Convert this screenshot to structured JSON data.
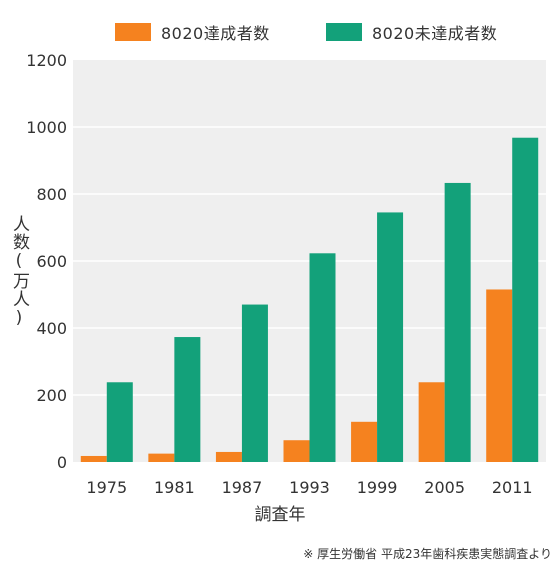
{
  "chart_data": {
    "type": "bar",
    "categories": [
      "1975",
      "1981",
      "1987",
      "1993",
      "1999",
      "2005",
      "2011"
    ],
    "series": [
      {
        "name": "8020達成者数",
        "color": "#f5821f",
        "values": [
          18,
          25,
          30,
          65,
          120,
          238,
          515
        ]
      },
      {
        "name": "8020未達成者数",
        "color": "#13a17a",
        "values": [
          238,
          373,
          470,
          623,
          745,
          833,
          968
        ]
      }
    ],
    "xlabel": "調査年",
    "ylabel": "人数(万人)",
    "ylim": [
      0,
      1200
    ],
    "yticks": [
      0,
      200,
      400,
      600,
      800,
      1000,
      1200
    ],
    "grid": true,
    "legend": "top",
    "plot_background": "#efefef",
    "grid_color": "#ffffff"
  },
  "source_note": "※ 厚生労働省 平成23年歯科疾患実態調査より"
}
